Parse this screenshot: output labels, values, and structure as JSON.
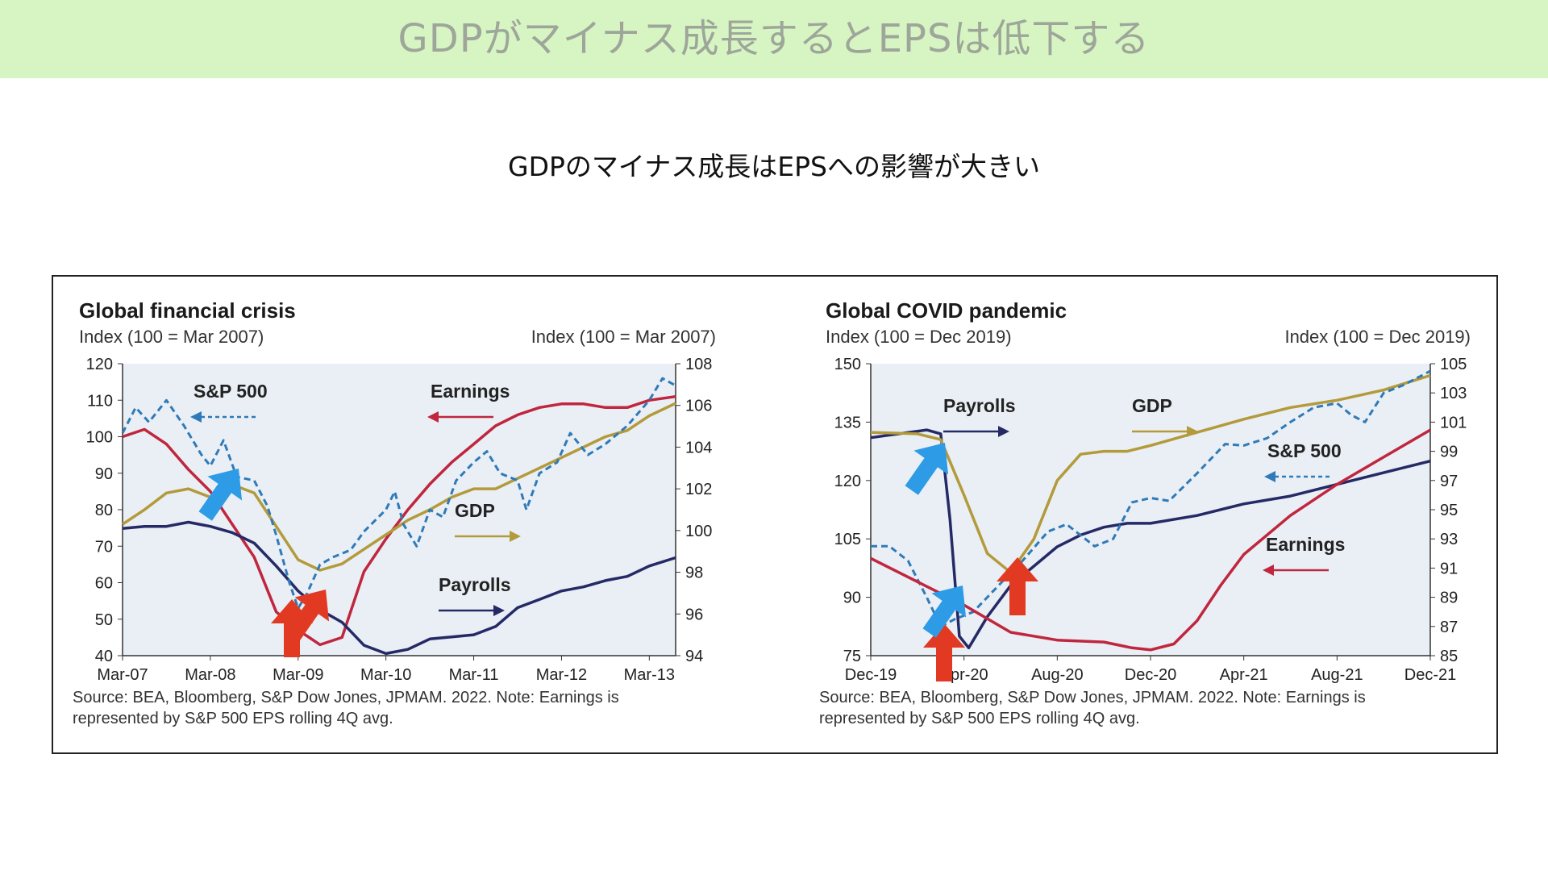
{
  "header": {
    "title": "GDPがマイナス成長するとEPSは低下する",
    "subtitle": "GDPのマイナス成長はEPSへの影響が大きい"
  },
  "colors": {
    "banner": "#d7f5c3",
    "plot_bg": "#e9eff5",
    "earnings": "#c0263e",
    "gdp": "#b39a3b",
    "payrolls": "#252a66",
    "sp500": "#2f7ab8",
    "arrow_red": "#e23a22",
    "arrow_blue": "#2e9be6"
  },
  "chart_data": [
    {
      "type": "line",
      "title": "Global financial crisis",
      "left_axis_label": "Index (100 = Mar 2007)",
      "right_axis_label": "Index (100 = Mar 2007)",
      "x_ticks": [
        "Mar-07",
        "Mar-08",
        "Mar-09",
        "Mar-10",
        "Mar-11",
        "Mar-12",
        "Mar-13"
      ],
      "x_range": [
        0,
        6.3
      ],
      "ylim_left": [
        40,
        120
      ],
      "ylim_right": [
        94,
        108
      ],
      "y_ticks_left": [
        40,
        50,
        60,
        70,
        80,
        90,
        100,
        110,
        120
      ],
      "y_ticks_right": [
        94,
        96,
        98,
        100,
        102,
        104,
        106,
        108
      ],
      "source": [
        "Source: BEA, Bloomberg, S&P Dow Jones, JPMAM. 2022. Note: Earnings is",
        "represented by S&P 500 EPS rolling 4Q avg."
      ],
      "series": [
        {
          "name": "Earnings",
          "axis": "left",
          "color_key": "earnings",
          "label_arrow": "left",
          "points": [
            [
              0,
              100
            ],
            [
              0.25,
              102
            ],
            [
              0.5,
              98
            ],
            [
              0.75,
              91
            ],
            [
              1,
              85
            ],
            [
              1.25,
              76
            ],
            [
              1.5,
              67
            ],
            [
              1.75,
              52
            ],
            [
              2,
              47
            ],
            [
              2.25,
              43
            ],
            [
              2.5,
              45
            ],
            [
              2.75,
              63
            ],
            [
              3,
              72
            ],
            [
              3.25,
              80
            ],
            [
              3.5,
              87
            ],
            [
              3.75,
              93
            ],
            [
              4,
              98
            ],
            [
              4.25,
              103
            ],
            [
              4.5,
              106
            ],
            [
              4.75,
              108
            ],
            [
              5,
              109
            ],
            [
              5.25,
              109
            ],
            [
              5.5,
              108
            ],
            [
              5.75,
              108
            ],
            [
              6,
              110
            ],
            [
              6.3,
              111
            ]
          ]
        },
        {
          "name": "GDP",
          "axis": "right",
          "color_key": "gdp",
          "label_arrow": "right",
          "points": [
            [
              0,
              100.3
            ],
            [
              0.25,
              101
            ],
            [
              0.5,
              101.8
            ],
            [
              0.75,
              102
            ],
            [
              1,
              101.6
            ],
            [
              1.25,
              102.2
            ],
            [
              1.5,
              101.8
            ],
            [
              1.75,
              100.2
            ],
            [
              2,
              98.6
            ],
            [
              2.25,
              98.1
            ],
            [
              2.5,
              98.4
            ],
            [
              2.75,
              99.1
            ],
            [
              3,
              99.8
            ],
            [
              3.25,
              100.5
            ],
            [
              3.5,
              101
            ],
            [
              3.75,
              101.6
            ],
            [
              4,
              102
            ],
            [
              4.25,
              102
            ],
            [
              4.5,
              102.5
            ],
            [
              4.75,
              103
            ],
            [
              5,
              103.5
            ],
            [
              5.25,
              104
            ],
            [
              5.5,
              104.5
            ],
            [
              5.75,
              104.8
            ],
            [
              6,
              105.5
            ],
            [
              6.3,
              106.1
            ]
          ]
        },
        {
          "name": "Payrolls",
          "axis": "right",
          "color_key": "payrolls",
          "label_arrow": "right",
          "points": [
            [
              0,
              100.1
            ],
            [
              0.25,
              100.2
            ],
            [
              0.5,
              100.2
            ],
            [
              0.75,
              100.4
            ],
            [
              1,
              100.2
            ],
            [
              1.25,
              99.9
            ],
            [
              1.5,
              99.4
            ],
            [
              1.75,
              98.3
            ],
            [
              2,
              97.1
            ],
            [
              2.25,
              96.2
            ],
            [
              2.5,
              95.6
            ],
            [
              2.75,
              94.5
            ],
            [
              3,
              94.1
            ],
            [
              3.25,
              94.3
            ],
            [
              3.5,
              94.8
            ],
            [
              3.75,
              94.9
            ],
            [
              4,
              95
            ],
            [
              4.25,
              95.4
            ],
            [
              4.5,
              96.3
            ],
            [
              4.75,
              96.7
            ],
            [
              5,
              97.1
            ],
            [
              5.25,
              97.3
            ],
            [
              5.5,
              97.6
            ],
            [
              5.75,
              97.8
            ],
            [
              6,
              98.3
            ],
            [
              6.3,
              98.7
            ]
          ]
        },
        {
          "name": "S&P 500",
          "axis": "left",
          "color_key": "sp500",
          "dashed": true,
          "label_arrow": "left",
          "points": [
            [
              0,
              101
            ],
            [
              0.15,
              108
            ],
            [
              0.3,
              104
            ],
            [
              0.5,
              110
            ],
            [
              0.7,
              103
            ],
            [
              0.9,
              95
            ],
            [
              1,
              92
            ],
            [
              1.15,
              99
            ],
            [
              1.3,
              89
            ],
            [
              1.5,
              88
            ],
            [
              1.65,
              81
            ],
            [
              1.75,
              73
            ],
            [
              1.9,
              60
            ],
            [
              2,
              53
            ],
            [
              2.1,
              57
            ],
            [
              2.25,
              65
            ],
            [
              2.4,
              67
            ],
            [
              2.6,
              69
            ],
            [
              2.75,
              74
            ],
            [
              3,
              80
            ],
            [
              3.1,
              85
            ],
            [
              3.2,
              76
            ],
            [
              3.35,
              70
            ],
            [
              3.5,
              80
            ],
            [
              3.65,
              78
            ],
            [
              3.8,
              88
            ],
            [
              4,
              93
            ],
            [
              4.15,
              96
            ],
            [
              4.3,
              90
            ],
            [
              4.5,
              88
            ],
            [
              4.6,
              80
            ],
            [
              4.75,
              90
            ],
            [
              4.95,
              93
            ],
            [
              5.1,
              101
            ],
            [
              5.3,
              95
            ],
            [
              5.5,
              98
            ],
            [
              5.75,
              103
            ],
            [
              6,
              110
            ],
            [
              6.15,
              116
            ],
            [
              6.3,
              114
            ]
          ]
        }
      ]
    },
    {
      "type": "line",
      "title": "Global COVID pandemic",
      "left_axis_label": "Index (100 = Dec 2019)",
      "right_axis_label": "Index (100 = Dec 2019)",
      "x_ticks": [
        "Dec-19",
        "Apr-20",
        "Aug-20",
        "Dec-20",
        "Apr-21",
        "Aug-21",
        "Dec-21"
      ],
      "x_range": [
        0,
        6
      ],
      "ylim_left": [
        75,
        150
      ],
      "ylim_right": [
        85,
        105
      ],
      "y_ticks_left": [
        75,
        90,
        105,
        120,
        135,
        150
      ],
      "y_ticks_right": [
        85,
        87,
        89,
        91,
        93,
        95,
        97,
        99,
        101,
        103,
        105
      ],
      "source": [
        "Source: BEA, Bloomberg, S&P Dow Jones, JPMAM. 2022. Note: Earnings is",
        "represented by S&P 500 EPS rolling 4Q avg."
      ],
      "series": [
        {
          "name": "Payrolls",
          "axis": "left",
          "color_key": "payrolls",
          "label_arrow": "right",
          "points": [
            [
              0,
              131
            ],
            [
              0.3,
              132
            ],
            [
              0.6,
              133
            ],
            [
              0.75,
              132
            ],
            [
              0.85,
              110
            ],
            [
              0.95,
              80
            ],
            [
              1.05,
              77
            ],
            [
              1.25,
              85
            ],
            [
              1.5,
              93
            ],
            [
              1.75,
              98
            ],
            [
              2,
              103
            ],
            [
              2.25,
              106
            ],
            [
              2.5,
              108
            ],
            [
              2.75,
              109
            ],
            [
              3,
              109
            ],
            [
              3.5,
              111
            ],
            [
              4,
              114
            ],
            [
              4.5,
              116
            ],
            [
              5,
              119
            ],
            [
              5.5,
              122
            ],
            [
              6,
              125
            ]
          ]
        },
        {
          "name": "GDP",
          "axis": "right",
          "color_key": "gdp",
          "label_arrow": "right",
          "points": [
            [
              0,
              100.3
            ],
            [
              0.5,
              100.2
            ],
            [
              0.75,
              99.8
            ],
            [
              1,
              96
            ],
            [
              1.25,
              92
            ],
            [
              1.5,
              90.7
            ],
            [
              1.75,
              93
            ],
            [
              2,
              97
            ],
            [
              2.25,
              98.8
            ],
            [
              2.5,
              99
            ],
            [
              2.75,
              99
            ],
            [
              3,
              99.4
            ],
            [
              3.5,
              100.3
            ],
            [
              4,
              101.2
            ],
            [
              4.5,
              102
            ],
            [
              5,
              102.5
            ],
            [
              5.5,
              103.2
            ],
            [
              6,
              104.2
            ]
          ]
        },
        {
          "name": "S&P 500",
          "axis": "right",
          "color_key": "sp500",
          "dashed": true,
          "label_arrow": "left",
          "points": [
            [
              0,
              92.5
            ],
            [
              0.2,
              92.5
            ],
            [
              0.4,
              91.5
            ],
            [
              0.6,
              89
            ],
            [
              0.75,
              87
            ],
            [
              0.9,
              87.5
            ],
            [
              1.1,
              88
            ],
            [
              1.4,
              90
            ],
            [
              1.6,
              91.3
            ],
            [
              1.9,
              93.5
            ],
            [
              2.1,
              94
            ],
            [
              2.4,
              92.5
            ],
            [
              2.6,
              93
            ],
            [
              2.8,
              95.5
            ],
            [
              3,
              95.8
            ],
            [
              3.2,
              95.6
            ],
            [
              3.5,
              97.5
            ],
            [
              3.8,
              99.5
            ],
            [
              4,
              99.4
            ],
            [
              4.25,
              99.9
            ],
            [
              4.5,
              101
            ],
            [
              4.75,
              102
            ],
            [
              5,
              102.3
            ],
            [
              5.15,
              101.5
            ],
            [
              5.3,
              101
            ],
            [
              5.5,
              103
            ],
            [
              5.7,
              103.5
            ],
            [
              6,
              104.5
            ]
          ]
        },
        {
          "name": "Earnings",
          "axis": "left",
          "color_key": "earnings",
          "label_arrow": "left",
          "points": [
            [
              0,
              100
            ],
            [
              0.5,
              94
            ],
            [
              1,
              88
            ],
            [
              1.5,
              81
            ],
            [
              2,
              79
            ],
            [
              2.5,
              78.5
            ],
            [
              2.8,
              77
            ],
            [
              3,
              76.5
            ],
            [
              3.25,
              78
            ],
            [
              3.5,
              84
            ],
            [
              3.75,
              93
            ],
            [
              4,
              101
            ],
            [
              4.5,
              111
            ],
            [
              5,
              119
            ],
            [
              5.5,
              126
            ],
            [
              6,
              133
            ]
          ]
        }
      ]
    }
  ],
  "annotations": {
    "red_arrows": [
      "up",
      "up",
      "down-left",
      "up",
      "up"
    ],
    "blue_arrows": [
      "down-left",
      "down-left",
      "down-left"
    ]
  }
}
